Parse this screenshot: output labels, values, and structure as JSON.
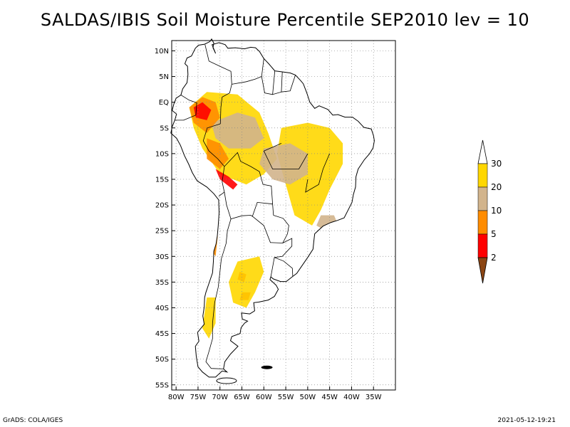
{
  "title": "SALDAS/IBIS Soil Moisture Percentile SEP2010 lev = 10",
  "footer": {
    "left": "GrADS: COLA/IGES",
    "right": "2021-05-12-19:21"
  },
  "map": {
    "lon_range": [
      -81,
      -30
    ],
    "lat_range": [
      -56,
      12
    ],
    "grid_lines": "dotted",
    "lat_ticks": [
      {
        "lat": 10,
        "label": "10N"
      },
      {
        "lat": 5,
        "label": "5N"
      },
      {
        "lat": 0,
        "label": "EQ"
      },
      {
        "lat": -5,
        "label": "5S"
      },
      {
        "lat": -10,
        "label": "10S"
      },
      {
        "lat": -15,
        "label": "15S"
      },
      {
        "lat": -20,
        "label": "20S"
      },
      {
        "lat": -25,
        "label": "25S"
      },
      {
        "lat": -30,
        "label": "30S"
      },
      {
        "lat": -35,
        "label": "35S"
      },
      {
        "lat": -40,
        "label": "40S"
      },
      {
        "lat": -45,
        "label": "45S"
      },
      {
        "lat": -50,
        "label": "50S"
      },
      {
        "lat": -55,
        "label": "55S"
      }
    ],
    "lon_ticks": [
      {
        "lon": -80,
        "label": "80W"
      },
      {
        "lon": -75,
        "label": "75W"
      },
      {
        "lon": -70,
        "label": "70W"
      },
      {
        "lon": -65,
        "label": "65W"
      },
      {
        "lon": -60,
        "label": "60W"
      },
      {
        "lon": -55,
        "label": "55W"
      },
      {
        "lon": -50,
        "label": "50W"
      },
      {
        "lon": -45,
        "label": "45W"
      },
      {
        "lon": -40,
        "label": "40W"
      },
      {
        "lon": -35,
        "label": "35W"
      }
    ]
  },
  "colorbar": {
    "levels": [
      "2",
      "5",
      "10",
      "20",
      "30"
    ],
    "colors": {
      "below_2": "#8b4513",
      "2_5": "#ff0000",
      "5_10": "#ff8c00",
      "10_20": "#d2b48c",
      "20_30": "#ffd700",
      "above_30": "#ffffff"
    }
  }
}
